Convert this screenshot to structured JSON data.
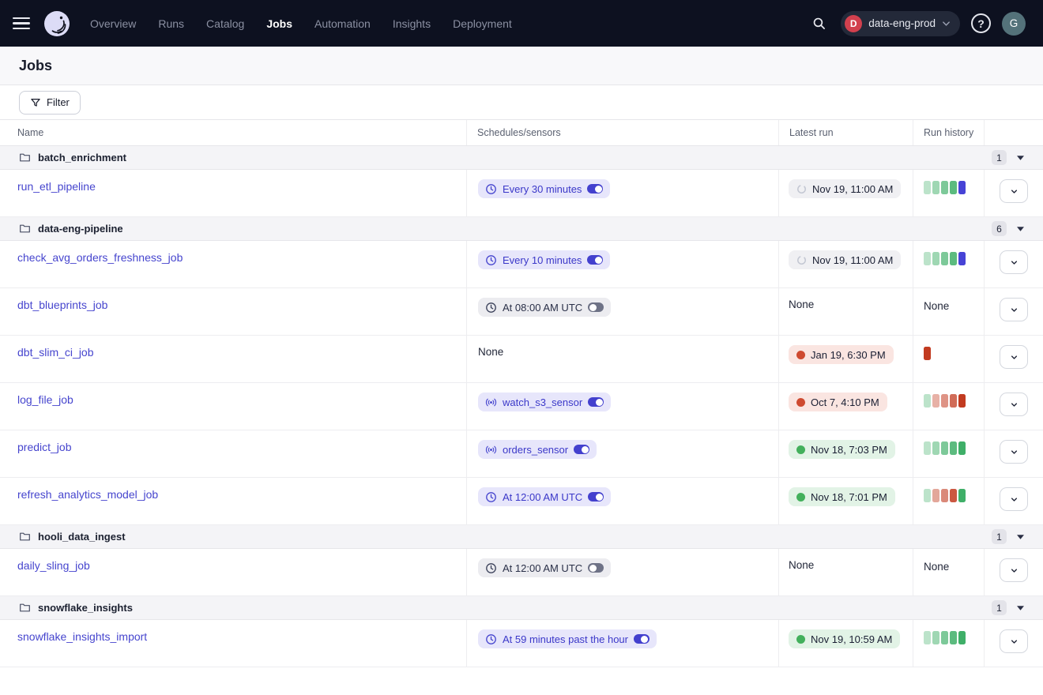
{
  "nav": {
    "items": [
      {
        "label": "Overview",
        "active": false
      },
      {
        "label": "Runs",
        "active": false
      },
      {
        "label": "Catalog",
        "active": false
      },
      {
        "label": "Jobs",
        "active": true
      },
      {
        "label": "Automation",
        "active": false
      },
      {
        "label": "Insights",
        "active": false
      },
      {
        "label": "Deployment",
        "active": false
      }
    ],
    "workspace": {
      "initial": "D",
      "name": "data-eng-prod"
    },
    "user_initial": "G"
  },
  "page": {
    "title": "Jobs",
    "filter_label": "Filter"
  },
  "table": {
    "columns": [
      "Name",
      "Schedules/sensors",
      "Latest run",
      "Run history",
      ""
    ],
    "groups": [
      {
        "name": "batch_enrichment",
        "count": "1",
        "jobs": [
          {
            "name": "run_etl_pipeline",
            "schedule": {
              "kind": "schedule",
              "label": "Every 30 minutes",
              "enabled": true
            },
            "latest_run": {
              "status": "in_progress",
              "label": "Nov 19, 11:00 AM"
            },
            "history": [
              "success:0.35",
              "success:0.5",
              "success:0.68",
              "success:0.85",
              "in_progress:1"
            ]
          }
        ]
      },
      {
        "name": "data-eng-pipeline",
        "count": "6",
        "jobs": [
          {
            "name": "check_avg_orders_freshness_job",
            "schedule": {
              "kind": "schedule",
              "label": "Every 10 minutes",
              "enabled": true
            },
            "latest_run": {
              "status": "in_progress",
              "label": "Nov 19, 11:00 AM"
            },
            "history": [
              "success:0.35",
              "success:0.5",
              "success:0.68",
              "success:0.85",
              "in_progress:1"
            ]
          },
          {
            "name": "dbt_blueprints_job",
            "schedule": {
              "kind": "schedule",
              "label": "At 08:00 AM UTC",
              "enabled": false
            },
            "latest_run": {
              "status": "none",
              "label": "None"
            },
            "history": "None"
          },
          {
            "name": "dbt_slim_ci_job",
            "schedule": {
              "kind": "none",
              "label": "None"
            },
            "latest_run": {
              "status": "failure",
              "label": "Jan 19, 6:30 PM"
            },
            "history": [
              "failure:1"
            ]
          },
          {
            "name": "log_file_job",
            "schedule": {
              "kind": "sensor",
              "label": "watch_s3_sensor",
              "enabled": true
            },
            "latest_run": {
              "status": "failure",
              "label": "Oct 7, 4:10 PM"
            },
            "history": [
              "success:0.35",
              "failure:0.4",
              "failure:0.55",
              "failure:0.75",
              "failure:1"
            ]
          },
          {
            "name": "predict_job",
            "schedule": {
              "kind": "sensor",
              "label": "orders_sensor",
              "enabled": true
            },
            "latest_run": {
              "status": "success",
              "label": "Nov 18, 7:03 PM"
            },
            "history": [
              "success:0.35",
              "success:0.5",
              "success:0.68",
              "success:0.85",
              "success:1"
            ]
          },
          {
            "name": "refresh_analytics_model_job",
            "schedule": {
              "kind": "schedule",
              "label": "At 12:00 AM UTC",
              "enabled": true
            },
            "latest_run": {
              "status": "success",
              "label": "Nov 18, 7:01 PM"
            },
            "history": [
              "success:0.35",
              "failure:0.45",
              "failure:0.6",
              "failure:0.85",
              "success:1"
            ]
          }
        ]
      },
      {
        "name": "hooli_data_ingest",
        "count": "1",
        "jobs": [
          {
            "name": "daily_sling_job",
            "schedule": {
              "kind": "schedule",
              "label": "At 12:00 AM UTC",
              "enabled": false
            },
            "latest_run": {
              "status": "none",
              "label": "None"
            },
            "history": "None"
          }
        ]
      },
      {
        "name": "snowflake_insights",
        "count": "1",
        "jobs": [
          {
            "name": "snowflake_insights_import",
            "schedule": {
              "kind": "schedule",
              "label": "At 59 minutes past the hour",
              "enabled": true
            },
            "latest_run": {
              "status": "success",
              "label": "Nov 19, 10:59 AM"
            },
            "history": [
              "success:0.35",
              "success:0.5",
              "success:0.68",
              "success:0.85",
              "success:1"
            ]
          }
        ]
      }
    ],
    "none_label": "None"
  },
  "colors": {
    "accent": "#4645CE",
    "success": "#3FAF68",
    "failure": "#C23B20",
    "in_progress": "#4743D6",
    "navbar_bg": "#0D1120",
    "workspace_avatar": "#D2404E",
    "user_avatar": "#54727A"
  }
}
